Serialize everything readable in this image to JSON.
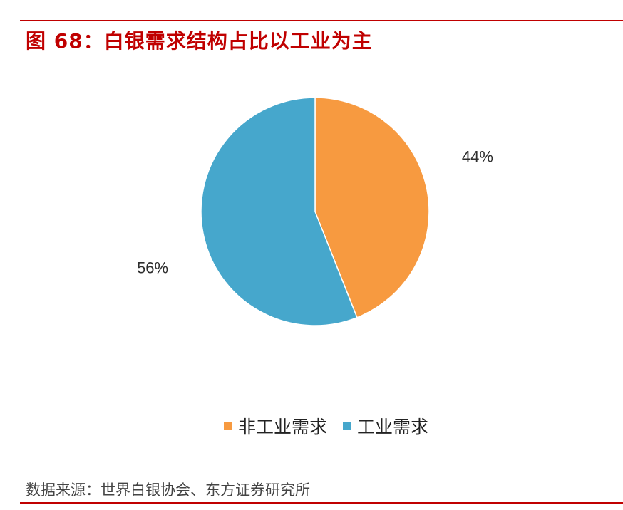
{
  "title": "图 68：白银需求结构占比以工业为主",
  "source": "数据来源：世界白银协会、东方证券研究所",
  "colors": {
    "accent_red": "#c00000",
    "non_industrial": "#f79a40",
    "industrial": "#46a7cc"
  },
  "chart_data": {
    "type": "pie",
    "start_angle_deg": 0,
    "direction": "clockwise",
    "slices": [
      {
        "label": "非工业需求",
        "value": 44,
        "display": "44%",
        "color": "#f79a40"
      },
      {
        "label": "工业需求",
        "value": 56,
        "display": "56%",
        "color": "#46a7cc"
      }
    ],
    "legend_position": "bottom"
  }
}
